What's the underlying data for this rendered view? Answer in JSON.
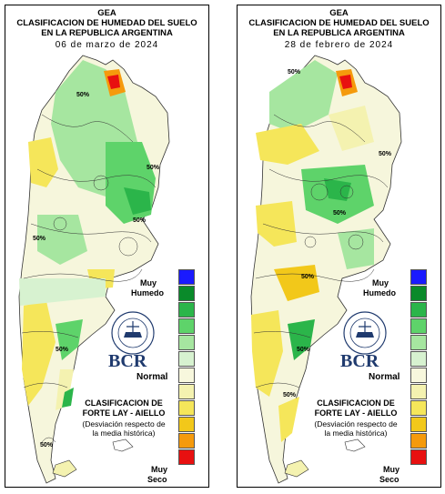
{
  "panels": [
    {
      "title_1": "GEA",
      "title_2": "CLASIFICACION DE HUMEDAD DEL SUELO",
      "title_3": "EN LA REPUBLICA ARGENTINA",
      "date": "06 de marzo de 2024",
      "contour_labels": [
        "50%",
        "50%",
        "50%",
        "50%",
        "50%",
        "50%"
      ]
    },
    {
      "title_1": "GEA",
      "title_2": "CLASIFICACION DE HUMEDAD DEL SUELO",
      "title_3": "EN LA REPUBLICA ARGENTINA",
      "date": "28 de febrero de 2024",
      "contour_labels": [
        "50%",
        "50%",
        "50%",
        "50%",
        "50%",
        "50%"
      ]
    }
  ],
  "legend": {
    "top_label_1": "Muy",
    "top_label_2": "Humedo",
    "middle_label": "Normal",
    "bottom_label_1": "Muy",
    "bottom_label_2": "Seco",
    "colors": [
      "#1a1aff",
      "#0a8a2a",
      "#2bb54a",
      "#5ed36a",
      "#a6e6a0",
      "#d7f2d0",
      "#f7f7dd",
      "#f4f2b0",
      "#f5e65a",
      "#f2c81a",
      "#f59a0c",
      "#e81010"
    ]
  },
  "logo": {
    "seal_text": "BOLSA DE COMERCIO DE ROSARIO",
    "name": "BCR"
  },
  "classification": {
    "line_1": "CLASIFICACION DE",
    "line_2": "FORTE LAY - AIELLO",
    "note_1": "(Desviación respecto de",
    "note_2": "la media histórica)"
  }
}
